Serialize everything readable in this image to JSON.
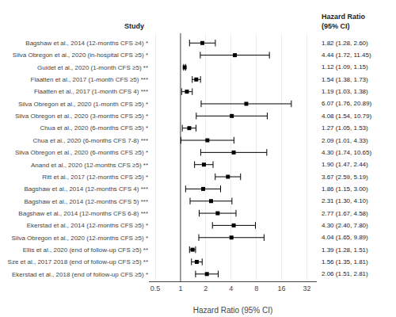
{
  "chart_data": {
    "type": "forest",
    "xlabel": "Hazard Ratio (95% CI)",
    "categories": [
      "Bagshaw et al., 2014 (12-months CFS ≥4) *",
      "Silva Obregon et al., 2020 (in-hospital CFS ≥5) *",
      "Guidet et al., 2020 (1-month CFS ≥5) **",
      "Flaatten et al., 2017 (1-month CFS ≥5) ***",
      "Flaatten et al., 2017 (1-month CFS 4) ***",
      "Silva Obregon et al., 2020 (1-month CFS ≥5) *",
      "Silva Obregon et al., 2020 (3-months CFS ≥5) *",
      "Chua et al., 2020 (6-months CFS ≥5) *",
      "Chua et al., 2020 (6-months CFS 7-8) ***",
      "Silva Obregon et al., 2020 (6-months CFS ≥5) *",
      "Anand et al., 2020 (12-months CFS ≥5) **",
      "Ritt et al., 2017 (12-months CFS ≥5) *",
      "Bagshaw et al., 2014 (12-months CFS 4) ***",
      "Bagshaw et al., 2014 (12-months CFS 5) ***",
      "Bagshaw et al., 2014 (12-months CFS 6-8) ***",
      "Ekerstad et al., 2014 (12-months CFS ≥5) *",
      "Silva Obregon et al., 2020 (12-months CFS ≥5) *",
      "Ellis et al., 2020 (end of follow-up CFS ≥5) **",
      "Sze et al., 2017 2018 (end of follow-up CFS ≥5) **",
      "Ekerstad et al., 2018 (end of follow-up CFS ≥5) *"
    ],
    "values": [
      1.82,
      4.44,
      1.12,
      1.54,
      1.19,
      6.07,
      4.08,
      1.27,
      2.09,
      4.3,
      1.9,
      3.67,
      1.86,
      2.31,
      2.77,
      4.3,
      4.04,
      1.39,
      1.56,
      2.06
    ],
    "lo": [
      1.28,
      1.72,
      1.09,
      1.38,
      1.03,
      1.76,
      1.54,
      1.05,
      1.01,
      1.74,
      1.47,
      2.59,
      1.15,
      1.3,
      1.67,
      2.4,
      1.65,
      1.28,
      1.35,
      1.51
    ],
    "hi": [
      2.6,
      11.45,
      1.15,
      1.73,
      1.38,
      20.89,
      10.79,
      1.53,
      4.33,
      10.65,
      2.44,
      5.19,
      3.0,
      4.1,
      4.58,
      7.8,
      9.89,
      1.51,
      1.81,
      2.81
    ],
    "value_labels": [
      "1.82 (1.28, 2.60)",
      "4.44 (1.72, 11.45)",
      "1.12 (1.09, 1.15)",
      "1.54 (1.38, 1.73)",
      "1.19 (1.03, 1.38)",
      "6.07 (1.76, 20.89)",
      "4.08 (1.54, 10.79)",
      "1.27 (1.05, 1.53)",
      "2.09 (1.01, 4.33)",
      "4.30 (1.74, 10.65)",
      "1.90 (1.47, 2.44)",
      "3.67 (2.59, 5.19)",
      "1.86 (1.15, 3.00)",
      "2.31 (1.30, 4.10)",
      "2.77 (1.67, 4.58)",
      "4.30 (2.40, 7.80)",
      "4.04 (1.65, 9.89)",
      "1.39 (1.28, 1.51)",
      "1.56 (1.35, 1.81)",
      "2.06 (1.51, 2.81)"
    ],
    "reference_line": 1.0,
    "log": "x",
    "xlim": [
      0.42,
      42
    ],
    "xticks": [
      0.5,
      1,
      2,
      4,
      8,
      16,
      32
    ],
    "grid": true,
    "color": "#000000",
    "annotations": [
      "Study",
      "Hazard Ratio",
      "(95% CI)"
    ]
  }
}
